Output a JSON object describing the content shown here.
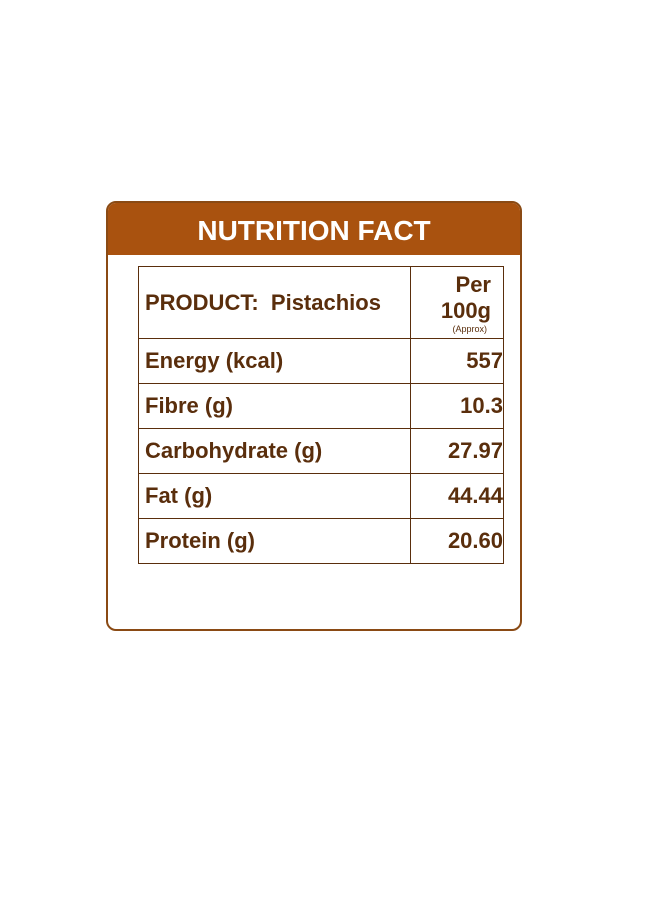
{
  "header": {
    "title": "NUTRITION FACT"
  },
  "table": {
    "product_label": "PRODUCT:",
    "product_name": "Pistachios",
    "per_label": "Per 100g",
    "approx": "(Approx)",
    "rows": [
      [
        "Energy (kcal)",
        "557"
      ],
      [
        "Fibre (g)",
        "10.3"
      ],
      [
        "Carbohydrate (g)",
        "27.97"
      ],
      [
        "Fat (g)",
        "44.44"
      ],
      [
        "Protein (g)",
        "20.60"
      ]
    ]
  }
}
